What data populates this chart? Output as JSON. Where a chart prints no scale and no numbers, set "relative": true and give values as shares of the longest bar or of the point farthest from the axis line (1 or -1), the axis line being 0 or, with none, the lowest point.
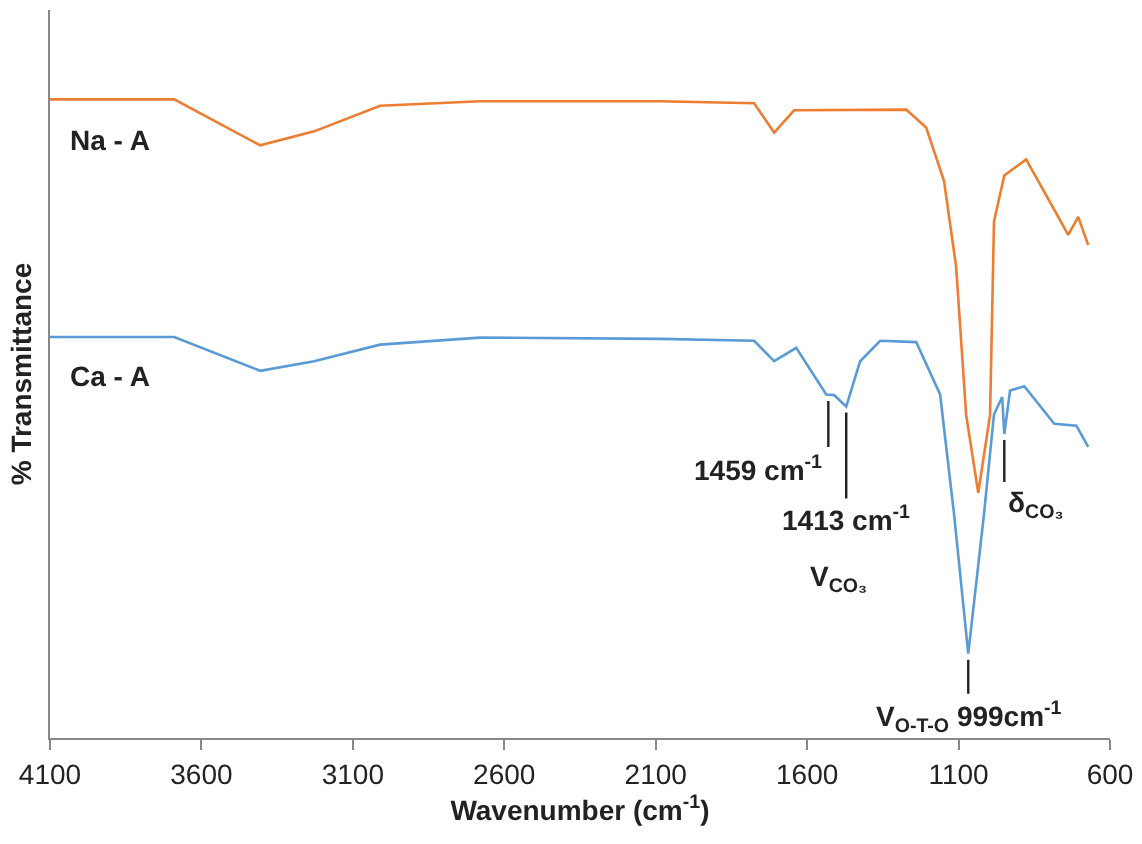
{
  "chart_data": {
    "type": "line",
    "relative": true,
    "xlabel": "Wavenumber (cm$^{-1}$)",
    "ylabel": "% Transmittance",
    "xlim": [
      4100,
      600
    ],
    "xticks": [
      4100,
      3600,
      3100,
      2600,
      2100,
      1600,
      1100,
      600
    ],
    "grid": false,
    "legend": false,
    "marker": "none",
    "line_style": "solid",
    "series": [
      {
        "name": "Na - A",
        "color": "#ed7d31",
        "x": [
          4100,
          3690,
          3406,
          3228,
          3010,
          2680,
          2086,
          1775,
          1709,
          1643,
          1273,
          1207,
          1148,
          1108,
          1075,
          1035,
          996,
          983,
          949,
          877,
          811,
          738,
          705,
          672
        ],
        "values": [
          1.0,
          1.0,
          0.928,
          0.95,
          0.99,
          0.997,
          0.997,
          0.994,
          0.948,
          0.983,
          0.984,
          0.956,
          0.872,
          0.738,
          0.506,
          0.384,
          0.506,
          0.809,
          0.881,
          0.906,
          0.85,
          0.788,
          0.816,
          0.772
        ]
      },
      {
        "name": "Ca - A",
        "color": "#5b9bd5",
        "x": [
          4100,
          3690,
          3406,
          3228,
          3010,
          2680,
          2086,
          1775,
          1709,
          1636,
          1537,
          1511,
          1471,
          1425,
          1359,
          1240,
          1161,
          1115,
          1068,
          1016,
          983,
          956,
          949,
          930,
          883,
          784,
          711,
          672
        ],
        "values": [
          0.628,
          0.628,
          0.575,
          0.59,
          0.616,
          0.627,
          0.625,
          0.622,
          0.59,
          0.611,
          0.538,
          0.537,
          0.519,
          0.59,
          0.622,
          0.62,
          0.538,
          0.351,
          0.132,
          0.351,
          0.507,
          0.534,
          0.476,
          0.544,
          0.551,
          0.492,
          0.489,
          0.456
        ]
      }
    ],
    "annotations": [
      {
        "text": "1459 cm$^{-1}$",
        "x": 1530,
        "y": 0.537
      },
      {
        "text": "1413 cm$^{-1}$",
        "x": 1471,
        "y": 0.519
      },
      "V$_{CO₃}$",
      {
        "text": "δ$_{CO₃}$",
        "x": 949,
        "y": 0.476
      },
      {
        "text": "V$_{O-T-O}$ 999cm$^{-1}$",
        "x": 1068,
        "y": 0.132
      }
    ]
  }
}
